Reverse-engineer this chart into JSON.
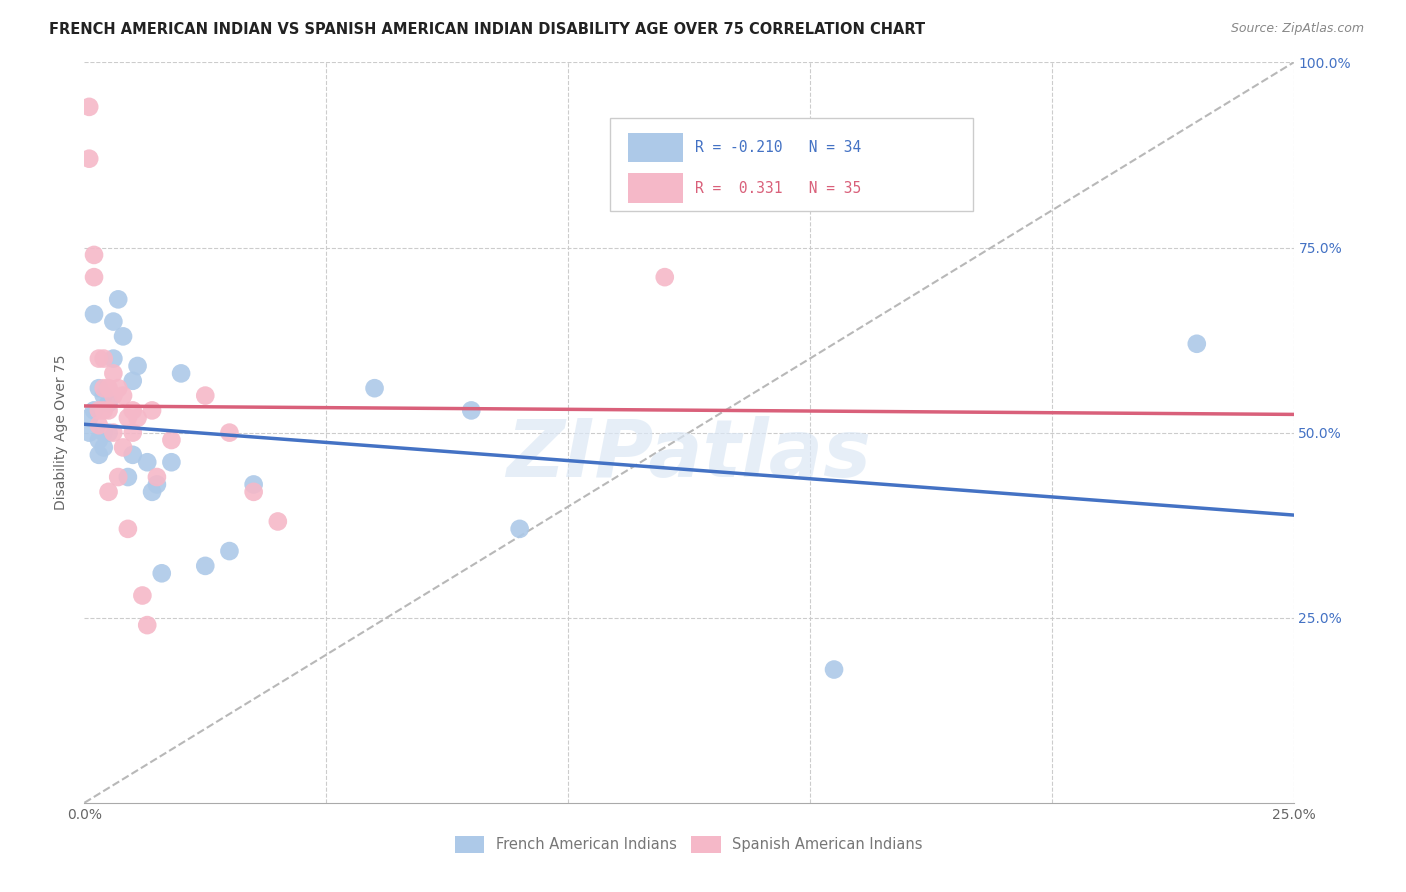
{
  "title": "FRENCH AMERICAN INDIAN VS SPANISH AMERICAN INDIAN DISABILITY AGE OVER 75 CORRELATION CHART",
  "source": "Source: ZipAtlas.com",
  "ylabel": "Disability Age Over 75",
  "xmin": 0.0,
  "xmax": 0.25,
  "ymin": 0.0,
  "ymax": 1.0,
  "R_blue": -0.21,
  "N_blue": 34,
  "R_pink": 0.331,
  "N_pink": 35,
  "legend_label_blue": "French American Indians",
  "legend_label_pink": "Spanish American Indians",
  "blue_color": "#adc9e8",
  "pink_color": "#f5b8c8",
  "blue_line_color": "#4472c4",
  "pink_line_color": "#d9607a",
  "dashed_line_color": "#b8b8b8",
  "watermark_text": "ZIPatlas",
  "blue_x": [
    0.001,
    0.001,
    0.002,
    0.002,
    0.003,
    0.003,
    0.003,
    0.004,
    0.004,
    0.004,
    0.005,
    0.005,
    0.006,
    0.006,
    0.007,
    0.008,
    0.009,
    0.01,
    0.01,
    0.011,
    0.013,
    0.014,
    0.015,
    0.016,
    0.018,
    0.02,
    0.025,
    0.03,
    0.035,
    0.06,
    0.08,
    0.09,
    0.155,
    0.23
  ],
  "blue_y": [
    0.52,
    0.5,
    0.66,
    0.53,
    0.56,
    0.49,
    0.47,
    0.55,
    0.5,
    0.48,
    0.54,
    0.5,
    0.65,
    0.6,
    0.68,
    0.63,
    0.44,
    0.47,
    0.57,
    0.59,
    0.46,
    0.42,
    0.43,
    0.31,
    0.46,
    0.58,
    0.32,
    0.34,
    0.43,
    0.56,
    0.53,
    0.37,
    0.18,
    0.62
  ],
  "pink_x": [
    0.001,
    0.001,
    0.002,
    0.002,
    0.003,
    0.003,
    0.003,
    0.004,
    0.004,
    0.004,
    0.005,
    0.005,
    0.005,
    0.006,
    0.006,
    0.006,
    0.007,
    0.007,
    0.008,
    0.008,
    0.009,
    0.009,
    0.01,
    0.01,
    0.011,
    0.012,
    0.013,
    0.014,
    0.015,
    0.018,
    0.025,
    0.03,
    0.035,
    0.04,
    0.12
  ],
  "pink_y": [
    0.94,
    0.87,
    0.74,
    0.71,
    0.6,
    0.53,
    0.51,
    0.6,
    0.56,
    0.53,
    0.56,
    0.53,
    0.42,
    0.58,
    0.55,
    0.5,
    0.56,
    0.44,
    0.55,
    0.48,
    0.52,
    0.37,
    0.53,
    0.5,
    0.52,
    0.28,
    0.24,
    0.53,
    0.44,
    0.49,
    0.55,
    0.5,
    0.42,
    0.38,
    0.71
  ]
}
